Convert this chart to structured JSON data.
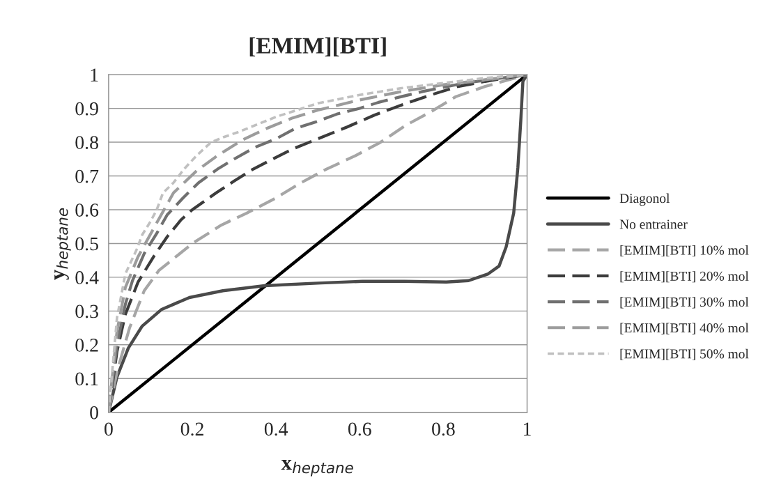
{
  "chart_data": {
    "type": "line",
    "title": "[EMIM][BTI]",
    "xlabel": "x$_{heptane}$",
    "ylabel": "y$_{heptane}$",
    "xlim": [
      0,
      1
    ],
    "ylim": [
      0,
      1
    ],
    "xticks": [
      0,
      0.2,
      0.4,
      0.6,
      0.8,
      1
    ],
    "yticks": [
      0,
      0.1,
      0.2,
      0.3,
      0.4,
      0.5,
      0.6,
      0.7,
      0.8,
      0.9,
      1
    ],
    "grid": "y",
    "legend": "right",
    "marker": "none",
    "series": [
      {
        "name": "Diagonol",
        "color": "#000000",
        "line_style": "solid",
        "x": [
          0,
          1
        ],
        "values": [
          0,
          1
        ]
      },
      {
        "name": "No entrainer",
        "color": "#4a4a4a",
        "line_style": "solid",
        "x": [
          0,
          0.02,
          0.047,
          0.08,
          0.127,
          0.193,
          0.273,
          0.373,
          0.507,
          0.607,
          0.707,
          0.807,
          0.86,
          0.907,
          0.933,
          0.95,
          0.968,
          0.978,
          0.985,
          0.99,
          1
        ],
        "values": [
          0,
          0.105,
          0.19,
          0.255,
          0.305,
          0.34,
          0.36,
          0.375,
          0.383,
          0.388,
          0.388,
          0.386,
          0.39,
          0.41,
          0.433,
          0.49,
          0.59,
          0.725,
          0.865,
          0.98,
          1
        ]
      },
      {
        "name": "[EMIM][BTI] 10% mol",
        "color": "#a6a6a6",
        "line_style": "dashed",
        "x": [
          0,
          0.02,
          0.05,
          0.085,
          0.12,
          0.15,
          0.2,
          0.27,
          0.33,
          0.4,
          0.46,
          0.52,
          0.59,
          0.65,
          0.71,
          0.77,
          0.83,
          0.9,
          1
        ],
        "values": [
          0,
          0.12,
          0.25,
          0.36,
          0.42,
          0.45,
          0.5,
          0.555,
          0.59,
          0.635,
          0.68,
          0.72,
          0.76,
          0.8,
          0.85,
          0.89,
          0.935,
          0.965,
          1
        ]
      },
      {
        "name": "[EMIM][BTI] 20% mol",
        "color": "#3c3c3c",
        "line_style": "dashed",
        "x": [
          0,
          0.02,
          0.04,
          0.07,
          0.107,
          0.14,
          0.173,
          0.2,
          0.257,
          0.3,
          0.345,
          0.4,
          0.44,
          0.5,
          0.57,
          0.635,
          0.7,
          0.77,
          0.835,
          0.9,
          1
        ],
        "values": [
          0,
          0.18,
          0.29,
          0.385,
          0.46,
          0.52,
          0.57,
          0.6,
          0.65,
          0.685,
          0.72,
          0.755,
          0.78,
          0.81,
          0.845,
          0.88,
          0.91,
          0.94,
          0.965,
          0.98,
          1
        ]
      },
      {
        "name": "[EMIM][BTI] 30% mol",
        "color": "#707070",
        "line_style": "dashed",
        "x": [
          0,
          0.02,
          0.04,
          0.057,
          0.085,
          0.115,
          0.14,
          0.178,
          0.215,
          0.26,
          0.3,
          0.35,
          0.4,
          0.445,
          0.495,
          0.545,
          0.6,
          0.645,
          0.7,
          0.75,
          0.85,
          1
        ],
        "values": [
          0,
          0.2,
          0.32,
          0.39,
          0.47,
          0.53,
          0.585,
          0.635,
          0.68,
          0.72,
          0.75,
          0.785,
          0.81,
          0.84,
          0.86,
          0.883,
          0.9,
          0.918,
          0.935,
          0.95,
          0.975,
          1
        ]
      },
      {
        "name": "[EMIM][BTI] 40% mol",
        "color": "#9c9c9c",
        "line_style": "dashed",
        "x": [
          0,
          0.02,
          0.04,
          0.07,
          0.11,
          0.155,
          0.21,
          0.26,
          0.32,
          0.38,
          0.44,
          0.5,
          0.6,
          0.7,
          0.8,
          0.9,
          1
        ],
        "values": [
          0,
          0.24,
          0.37,
          0.46,
          0.55,
          0.65,
          0.715,
          0.76,
          0.807,
          0.842,
          0.872,
          0.895,
          0.925,
          0.95,
          0.97,
          0.985,
          1
        ]
      },
      {
        "name": "[EMIM][BTI] 50% mol",
        "color": "#c0c0c0",
        "line_style": "dotted",
        "x": [
          0,
          0.02,
          0.04,
          0.068,
          0.08,
          0.1,
          0.115,
          0.13,
          0.155,
          0.18,
          0.21,
          0.245,
          0.275,
          0.31,
          0.4,
          0.5,
          0.6,
          0.7,
          0.8,
          0.9,
          1
        ],
        "values": [
          0,
          0.28,
          0.41,
          0.485,
          0.525,
          0.565,
          0.6,
          0.65,
          0.68,
          0.72,
          0.76,
          0.8,
          0.815,
          0.83,
          0.875,
          0.915,
          0.94,
          0.96,
          0.975,
          0.99,
          1
        ]
      }
    ]
  }
}
